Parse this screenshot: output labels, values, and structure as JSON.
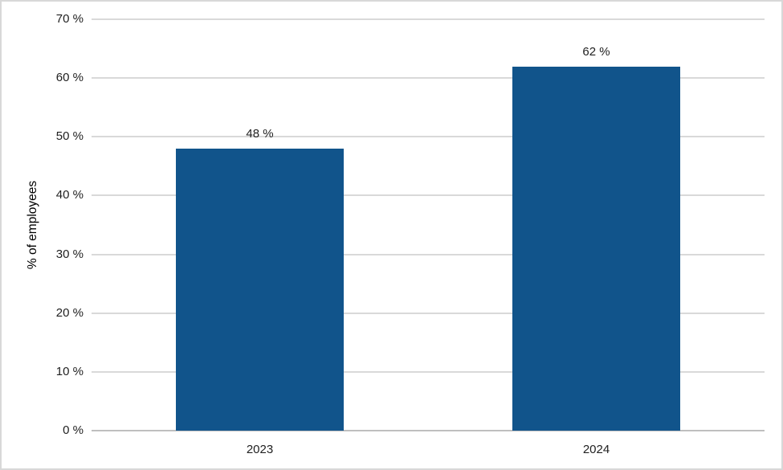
{
  "chart_data": {
    "type": "bar",
    "title": "",
    "xlabel": "",
    "ylabel": "% of employees",
    "categories": [
      "2023",
      "2024"
    ],
    "values": [
      48,
      62
    ],
    "value_labels": [
      "48 %",
      "62 %"
    ],
    "ylim": [
      0,
      70
    ],
    "ytick_values": [
      0,
      10,
      20,
      30,
      40,
      50,
      60,
      70
    ],
    "ytick_labels": [
      "0 %",
      "10 %",
      "20 %",
      "30 %",
      "40 %",
      "50 %",
      "60 %",
      "70 %"
    ],
    "grid": true,
    "legend": false,
    "legend_position": "none",
    "colors": {
      "bar": "#11548b",
      "gridline": "#d9d9d9",
      "axis_line": "#bfbfbf",
      "text": "#212121",
      "border": "#d8d8d8",
      "background": "#ffffff"
    }
  }
}
